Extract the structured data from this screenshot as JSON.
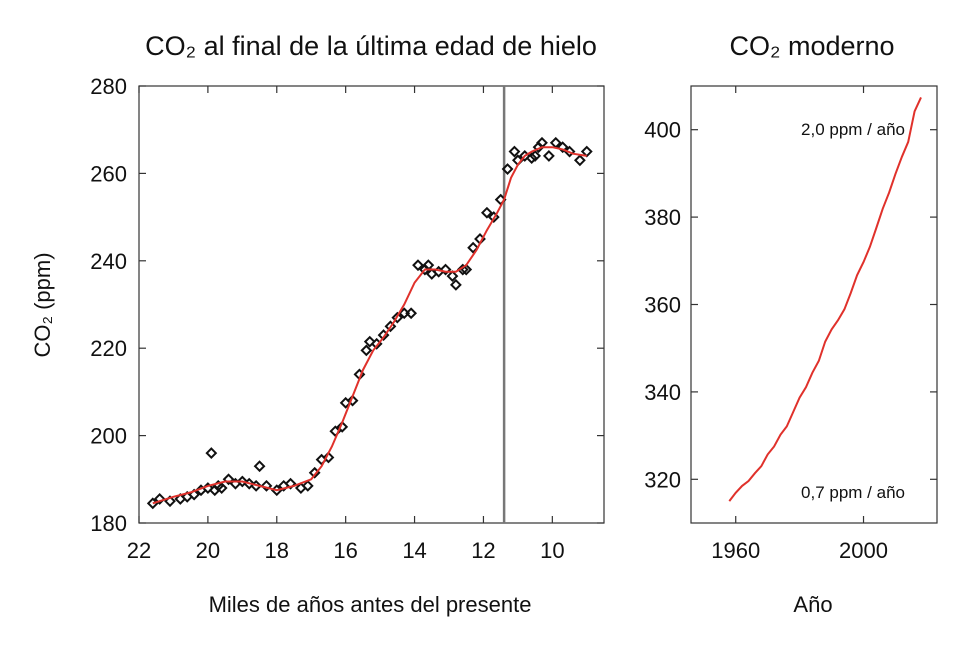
{
  "chart_data": [
    {
      "type": "scatter",
      "title": "CO₂ al final de la última edad de hielo",
      "xlabel": "Miles de años antes del presente",
      "ylabel": "CO₂ (ppm)",
      "xlim": [
        22,
        8.5
      ],
      "x_reversed": true,
      "ylim": [
        180,
        280
      ],
      "xticks": [
        "22",
        "20",
        "18",
        "16",
        "14",
        "12",
        "10"
      ],
      "yticks": [
        "180",
        "200",
        "220",
        "240",
        "260",
        "280"
      ],
      "vertical_line_x": 11.4,
      "colors": {
        "points": "#111111",
        "fit": "#e0312b",
        "vline": "#777777"
      },
      "series": [
        {
          "kind": "points",
          "x": [
            21.6,
            21.4,
            21.1,
            20.8,
            20.6,
            20.4,
            20.2,
            20.0,
            19.9,
            19.8,
            19.7,
            19.6,
            19.4,
            19.2,
            19.0,
            18.8,
            18.6,
            18.5,
            18.3,
            18.0,
            17.8,
            17.6,
            17.3,
            17.1,
            16.9,
            16.7,
            16.5,
            16.3,
            16.1,
            16.0,
            15.8,
            15.6,
            15.4,
            15.3,
            15.1,
            14.9,
            14.7,
            14.5,
            14.3,
            14.1,
            13.9,
            13.7,
            13.6,
            13.5,
            13.3,
            13.1,
            12.9,
            12.8,
            12.6,
            12.5,
            12.3,
            12.1,
            11.9,
            11.7,
            11.5,
            11.3,
            11.1,
            11.0,
            10.8,
            10.6,
            10.5,
            10.4,
            10.3,
            10.1,
            9.9,
            9.7,
            9.5,
            9.2,
            9.0
          ],
          "y": [
            184.5,
            185.5,
            185,
            185.5,
            186,
            186.5,
            187.5,
            188,
            196,
            187.5,
            188.5,
            188,
            190,
            189,
            189.5,
            189,
            188.5,
            193,
            188.5,
            187.5,
            188.5,
            189,
            188,
            188.5,
            191.5,
            194.5,
            195,
            201,
            202,
            207.5,
            208,
            214,
            219.5,
            221.5,
            221,
            223,
            225,
            227,
            228,
            228,
            239,
            238,
            239,
            237,
            237.5,
            238,
            236.5,
            234.5,
            238,
            238,
            243,
            245,
            251,
            250,
            254,
            261,
            265,
            263,
            264,
            263.5,
            264,
            266,
            267,
            264,
            267,
            266,
            265,
            263,
            265
          ]
        },
        {
          "kind": "fit_line",
          "x": [
            21.6,
            21.0,
            20.5,
            20.0,
            19.5,
            19.0,
            18.5,
            18.0,
            17.5,
            17.0,
            16.7,
            16.4,
            16.1,
            15.8,
            15.5,
            15.2,
            14.9,
            14.6,
            14.3,
            14.0,
            13.7,
            13.4,
            13.1,
            12.8,
            12.5,
            12.2,
            11.9,
            11.6,
            11.4,
            11.2,
            11.0,
            10.8,
            10.6,
            10.3,
            10.0,
            9.7,
            9.4,
            9.0
          ],
          "y": [
            184.5,
            186,
            187,
            188.5,
            189.5,
            189.5,
            188.5,
            187.5,
            188.5,
            190,
            193,
            197.5,
            203,
            209,
            215,
            219.5,
            222.5,
            226,
            230,
            235,
            238,
            238,
            237.5,
            237.5,
            239,
            242.5,
            247,
            251,
            254,
            259,
            262,
            264,
            265,
            266,
            266,
            265.5,
            264.5,
            264
          ]
        }
      ]
    },
    {
      "type": "line",
      "title": "CO₂ moderno",
      "xlabel": "Año",
      "ylabel": "",
      "xlim": [
        1946,
        2023
      ],
      "ylim": [
        310,
        410
      ],
      "xticks": [
        "1960",
        "2000"
      ],
      "yticks": [
        "320",
        "340",
        "360",
        "380",
        "400"
      ],
      "annotations": [
        "2,0 ppm / año",
        "0,7 ppm / año"
      ],
      "colors": {
        "line": "#e0312b"
      },
      "series": [
        {
          "x": [
            1958,
            1960,
            1962,
            1964,
            1966,
            1968,
            1970,
            1972,
            1974,
            1976,
            1978,
            1980,
            1982,
            1984,
            1986,
            1988,
            1990,
            1992,
            1994,
            1996,
            1998,
            2000,
            2002,
            2004,
            2006,
            2008,
            2010,
            2012,
            2014,
            2016,
            2018
          ],
          "y": [
            315,
            316.9,
            318.5,
            319.6,
            321.4,
            323,
            325.7,
            327.5,
            330.2,
            332.1,
            335.4,
            338.7,
            341.1,
            344.4,
            347.1,
            351.5,
            354.3,
            356.4,
            358.9,
            362.6,
            366.7,
            369.7,
            373.2,
            377.5,
            381.9,
            385.6,
            389.9,
            393.8,
            397.2,
            404.2,
            407.4
          ]
        }
      ]
    }
  ]
}
